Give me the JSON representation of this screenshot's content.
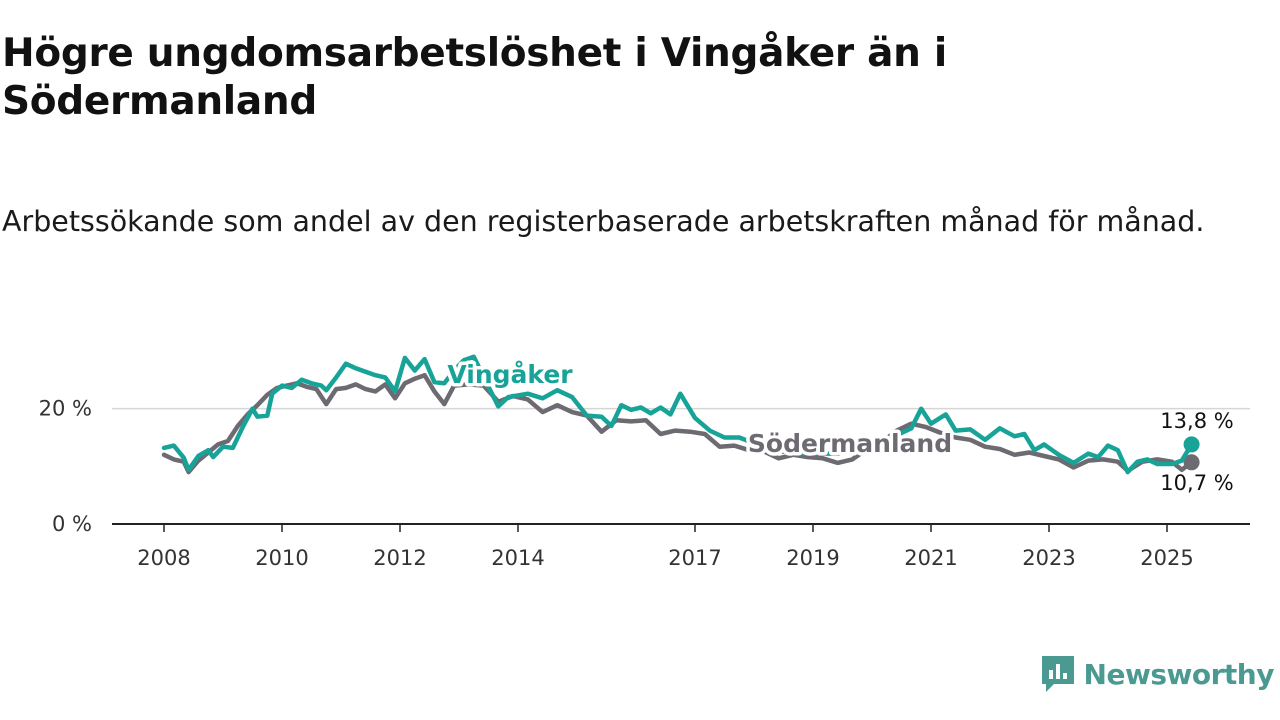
{
  "header": {
    "title": "Högre ungdomsarbetslöshet i Vingåker än i Södermanland",
    "subtitle": "Arbetssökande som andel av den registerbaserade arbetskraften månad för månad."
  },
  "brand": {
    "name": "Newsworthy",
    "icon": "newsworthy-logo-icon",
    "color": "#4a9a92"
  },
  "chart_data": {
    "type": "line",
    "x_ticks": [
      "2008",
      "2010",
      "2012",
      "2014",
      "2017",
      "2019",
      "2021",
      "2023",
      "2025"
    ],
    "y_ticks": [
      {
        "value": 0,
        "label": "0 %"
      },
      {
        "value": 20,
        "label": "20 %"
      }
    ],
    "ylim": [
      0,
      30
    ],
    "xlim": [
      "2007-06",
      "2026-06"
    ],
    "grid": "horizontal at 20 %",
    "series": [
      {
        "name": "Vingåker",
        "color": "#17a398",
        "end_label": "13,8 %",
        "points": [
          [
            "2008-01",
            13.2
          ],
          [
            "2008-03",
            13.6
          ],
          [
            "2008-05",
            11.5
          ],
          [
            "2008-06",
            9.4
          ],
          [
            "2008-08",
            11.8
          ],
          [
            "2008-10",
            12.8
          ],
          [
            "2008-11",
            11.6
          ],
          [
            "2009-01",
            13.4
          ],
          [
            "2009-03",
            13.2
          ],
          [
            "2009-05",
            16.8
          ],
          [
            "2009-07",
            20.0
          ],
          [
            "2009-08",
            18.6
          ],
          [
            "2009-10",
            18.8
          ],
          [
            "2009-11",
            22.6
          ],
          [
            "2010-01",
            24.0
          ],
          [
            "2010-03",
            23.6
          ],
          [
            "2010-05",
            25.0
          ],
          [
            "2010-07",
            24.4
          ],
          [
            "2010-09",
            24.0
          ],
          [
            "2010-10",
            23.2
          ],
          [
            "2010-12",
            25.4
          ],
          [
            "2011-02",
            27.8
          ],
          [
            "2011-04",
            27.0
          ],
          [
            "2011-06",
            26.4
          ],
          [
            "2011-08",
            25.8
          ],
          [
            "2011-10",
            25.4
          ],
          [
            "2011-12",
            23.0
          ],
          [
            "2012-02",
            28.8
          ],
          [
            "2012-04",
            26.6
          ],
          [
            "2012-06",
            28.6
          ],
          [
            "2012-08",
            24.6
          ],
          [
            "2012-10",
            24.4
          ],
          [
            "2012-12",
            26.6
          ],
          [
            "2013-02",
            28.4
          ],
          [
            "2013-04",
            29.0
          ],
          [
            "2013-07",
            23.8
          ],
          [
            "2013-09",
            20.4
          ],
          [
            "2013-11",
            22.0
          ],
          [
            "2014-03",
            22.6
          ],
          [
            "2014-06",
            21.8
          ],
          [
            "2014-09",
            23.2
          ],
          [
            "2014-12",
            22.0
          ],
          [
            "2015-03",
            18.8
          ],
          [
            "2015-06",
            18.6
          ],
          [
            "2015-08",
            17.0
          ],
          [
            "2015-10",
            20.6
          ],
          [
            "2015-12",
            19.8
          ],
          [
            "2016-02",
            20.2
          ],
          [
            "2016-04",
            19.2
          ],
          [
            "2016-06",
            20.2
          ],
          [
            "2016-08",
            19.0
          ],
          [
            "2016-10",
            22.6
          ],
          [
            "2017-01",
            18.4
          ],
          [
            "2017-04",
            16.2
          ],
          [
            "2017-07",
            15.0
          ],
          [
            "2017-10",
            15.0
          ],
          [
            "2018-01",
            14.0
          ],
          [
            "2018-06",
            12.6
          ],
          [
            "2018-12",
            12.2
          ],
          [
            "2019-06",
            12.2
          ],
          [
            "2019-12",
            13.4
          ],
          [
            "2020-03",
            14.6
          ],
          [
            "2020-06",
            15.4
          ],
          [
            "2020-09",
            16.6
          ],
          [
            "2020-11",
            20.0
          ],
          [
            "2021-01",
            17.4
          ],
          [
            "2021-04",
            19.0
          ],
          [
            "2021-06",
            16.2
          ],
          [
            "2021-09",
            16.4
          ],
          [
            "2021-12",
            14.6
          ],
          [
            "2022-03",
            16.6
          ],
          [
            "2022-06",
            15.2
          ],
          [
            "2022-08",
            15.6
          ],
          [
            "2022-10",
            12.8
          ],
          [
            "2022-12",
            13.8
          ],
          [
            "2023-03",
            12.0
          ],
          [
            "2023-06",
            10.6
          ],
          [
            "2023-09",
            12.2
          ],
          [
            "2023-11",
            11.6
          ],
          [
            "2024-01",
            13.6
          ],
          [
            "2024-03",
            12.8
          ],
          [
            "2024-05",
            9.0
          ],
          [
            "2024-07",
            10.8
          ],
          [
            "2024-09",
            11.2
          ],
          [
            "2024-11",
            10.4
          ],
          [
            "2025-02",
            10.4
          ],
          [
            "2025-04",
            11.0
          ],
          [
            "2025-06",
            13.8
          ]
        ]
      },
      {
        "name": "Södermanland",
        "color": "#6e6a72",
        "end_label": "10,7 %",
        "points": [
          [
            "2008-01",
            12.0
          ],
          [
            "2008-03",
            11.2
          ],
          [
            "2008-05",
            10.8
          ],
          [
            "2008-06",
            9.0
          ],
          [
            "2008-08",
            11.0
          ],
          [
            "2008-10",
            12.4
          ],
          [
            "2008-12",
            13.8
          ],
          [
            "2009-02",
            14.4
          ],
          [
            "2009-04",
            17.0
          ],
          [
            "2009-06",
            19.0
          ],
          [
            "2009-08",
            20.6
          ],
          [
            "2009-10",
            22.4
          ],
          [
            "2009-12",
            23.6
          ],
          [
            "2010-02",
            24.0
          ],
          [
            "2010-04",
            24.4
          ],
          [
            "2010-06",
            23.8
          ],
          [
            "2010-08",
            23.4
          ],
          [
            "2010-10",
            20.8
          ],
          [
            "2010-12",
            23.4
          ],
          [
            "2011-02",
            23.6
          ],
          [
            "2011-04",
            24.2
          ],
          [
            "2011-06",
            23.4
          ],
          [
            "2011-08",
            23.0
          ],
          [
            "2011-10",
            24.2
          ],
          [
            "2011-12",
            21.8
          ],
          [
            "2012-02",
            24.4
          ],
          [
            "2012-04",
            25.2
          ],
          [
            "2012-06",
            25.8
          ],
          [
            "2012-08",
            23.0
          ],
          [
            "2012-10",
            20.8
          ],
          [
            "2012-12",
            24.0
          ],
          [
            "2013-03",
            24.2
          ],
          [
            "2013-06",
            24.0
          ],
          [
            "2013-09",
            21.2
          ],
          [
            "2013-12",
            22.2
          ],
          [
            "2014-03",
            21.6
          ],
          [
            "2014-06",
            19.4
          ],
          [
            "2014-09",
            20.6
          ],
          [
            "2014-12",
            19.4
          ],
          [
            "2015-03",
            18.8
          ],
          [
            "2015-06",
            16.0
          ],
          [
            "2015-09",
            18.0
          ],
          [
            "2015-12",
            17.8
          ],
          [
            "2016-03",
            18.0
          ],
          [
            "2016-06",
            15.6
          ],
          [
            "2016-09",
            16.2
          ],
          [
            "2016-12",
            16.0
          ],
          [
            "2017-03",
            15.6
          ],
          [
            "2017-06",
            13.4
          ],
          [
            "2017-09",
            13.6
          ],
          [
            "2017-12",
            12.8
          ],
          [
            "2018-03",
            12.6
          ],
          [
            "2018-06",
            11.4
          ],
          [
            "2018-09",
            12.0
          ],
          [
            "2018-12",
            11.6
          ],
          [
            "2019-03",
            11.4
          ],
          [
            "2019-06",
            10.6
          ],
          [
            "2019-09",
            11.2
          ],
          [
            "2019-12",
            13.0
          ],
          [
            "2020-03",
            14.2
          ],
          [
            "2020-06",
            16.2
          ],
          [
            "2020-09",
            17.4
          ],
          [
            "2020-12",
            16.8
          ],
          [
            "2021-03",
            15.8
          ],
          [
            "2021-06",
            15.0
          ],
          [
            "2021-09",
            14.6
          ],
          [
            "2021-12",
            13.4
          ],
          [
            "2022-03",
            13.0
          ],
          [
            "2022-06",
            12.0
          ],
          [
            "2022-09",
            12.4
          ],
          [
            "2022-12",
            11.8
          ],
          [
            "2023-03",
            11.2
          ],
          [
            "2023-06",
            9.8
          ],
          [
            "2023-09",
            11.0
          ],
          [
            "2023-12",
            11.2
          ],
          [
            "2024-03",
            10.8
          ],
          [
            "2024-05",
            9.2
          ],
          [
            "2024-08",
            10.8
          ],
          [
            "2024-11",
            11.2
          ],
          [
            "2025-02",
            10.8
          ],
          [
            "2025-04",
            9.4
          ],
          [
            "2025-06",
            10.7
          ]
        ]
      }
    ]
  }
}
